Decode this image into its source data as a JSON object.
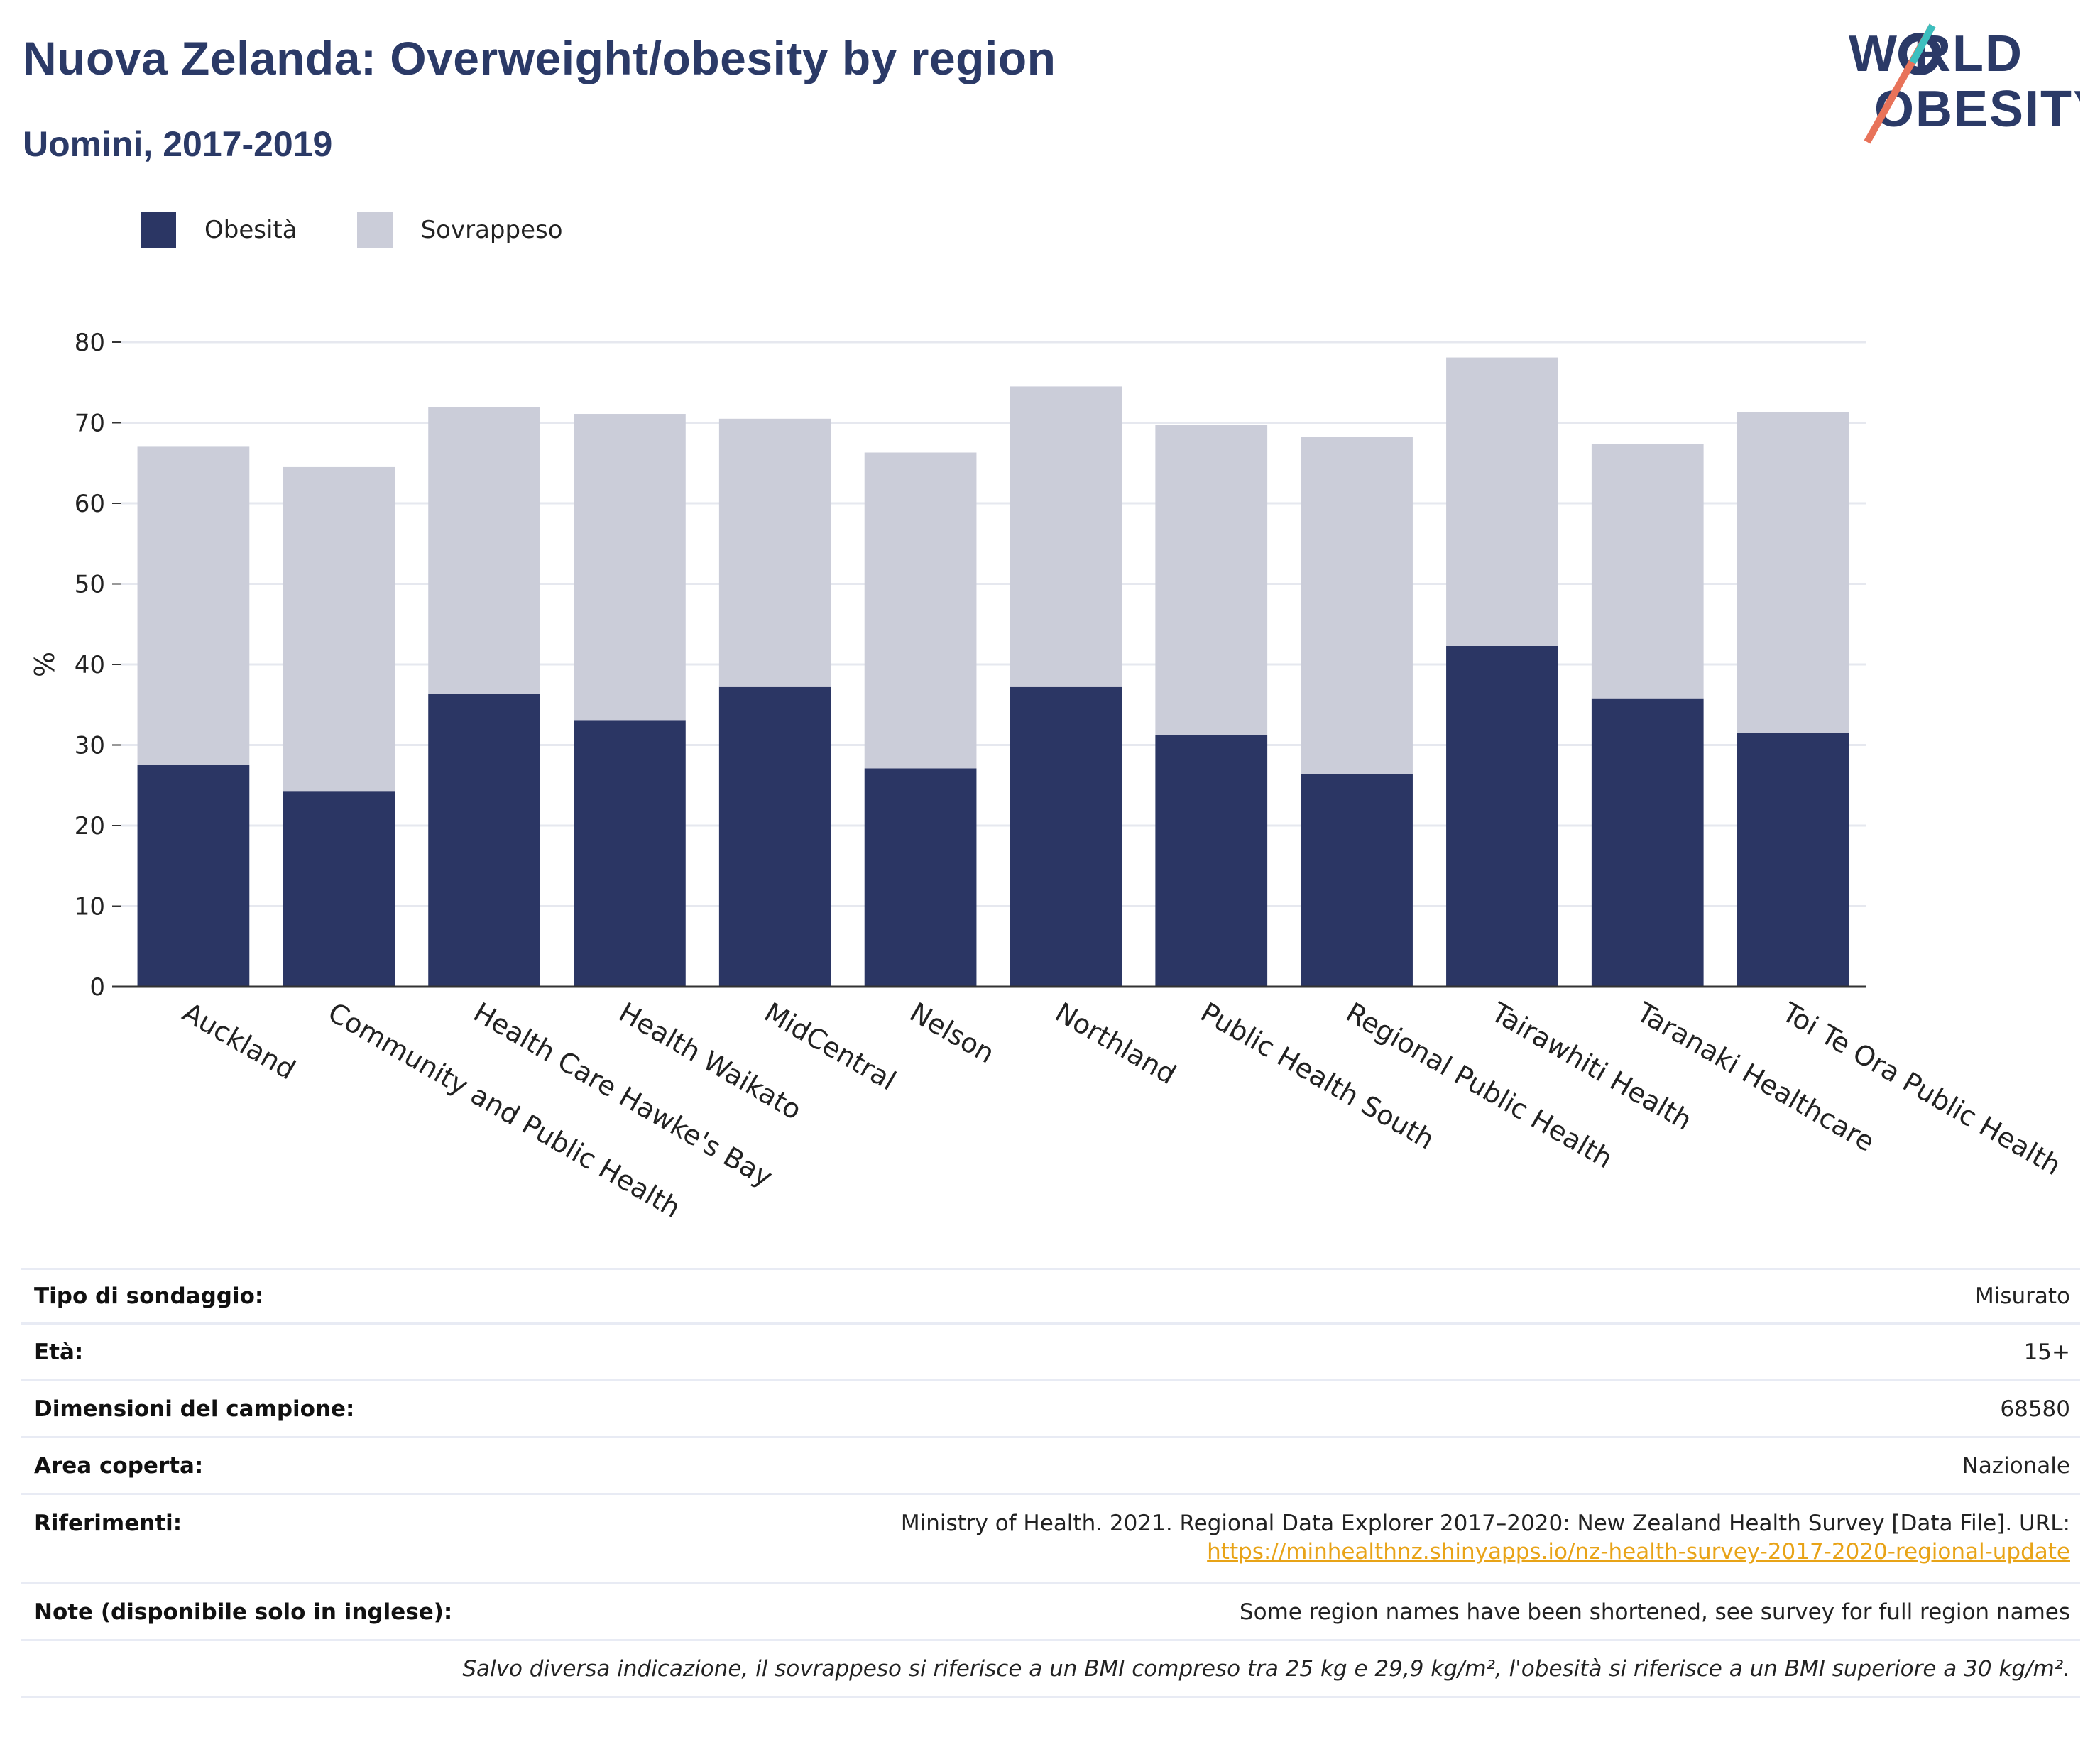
{
  "title": "Nuova Zelanda: Overweight/obesity by region",
  "subtitle": "Uomini, 2017-2019",
  "logo": {
    "line1": "WORLD",
    "line2": "OBESITY"
  },
  "colors": {
    "obesity": "#2b3664",
    "overweight": "#cbcdd9",
    "title": "#2b3a67",
    "link": "#e8a317",
    "logo_teal": "#3dbfbf",
    "logo_coral": "#e8735a"
  },
  "legend": {
    "obesity": "Obesità",
    "overweight": "Sovrappeso"
  },
  "chart_data": {
    "type": "bar",
    "stacked": true,
    "ylabel": "%",
    "ylim": [
      0,
      80
    ],
    "yticks": [
      0,
      10,
      20,
      30,
      40,
      50,
      60,
      70,
      80
    ],
    "grid": true,
    "legend_position": "top-left",
    "categories": [
      "Auckland",
      "Community and Public Health",
      "Health Care Hawke's Bay",
      "Health Waikato",
      "MidCentral",
      "Nelson",
      "Northland",
      "Public Health South",
      "Regional Public Health",
      "Tairawhiti Health",
      "Taranaki Healthcare",
      "Toi Te Ora Public Health"
    ],
    "series": [
      {
        "name": "Obesità",
        "values": [
          27.5,
          24.3,
          36.3,
          33.1,
          37.2,
          27.1,
          37.2,
          31.2,
          26.4,
          42.3,
          35.8,
          31.5
        ]
      },
      {
        "name": "Sovrappeso",
        "values": [
          39.6,
          40.2,
          35.6,
          38.0,
          33.3,
          39.2,
          37.3,
          38.5,
          41.8,
          35.8,
          31.6,
          39.8
        ]
      }
    ]
  },
  "meta": {
    "survey_type_label": "Tipo di sondaggio:",
    "survey_type": "Misurato",
    "age_label": "Età:",
    "age": "15+",
    "sample_label": "Dimensioni del campione:",
    "sample": "68580",
    "area_label": "Area coperta:",
    "area": "Nazionale",
    "refs_label": "Riferimenti:",
    "refs": "Ministry of Health. 2021. Regional Data Explorer 2017–2020: New Zealand Health Survey [Data File]. URL:",
    "refs_url": "https://minhealthnz.shinyapps.io/nz-health-survey-2017-2020-regional-update",
    "notes_label": "Note (disponibile solo in inglese):",
    "notes": "Some region names have been shortened, see survey for full region names",
    "footnote": "Salvo diversa indicazione, il sovrappeso si riferisce a un BMI compreso tra 25 kg e 29,9 kg/m², l'obesità si riferisce a un BMI superiore a 30 kg/m²."
  }
}
